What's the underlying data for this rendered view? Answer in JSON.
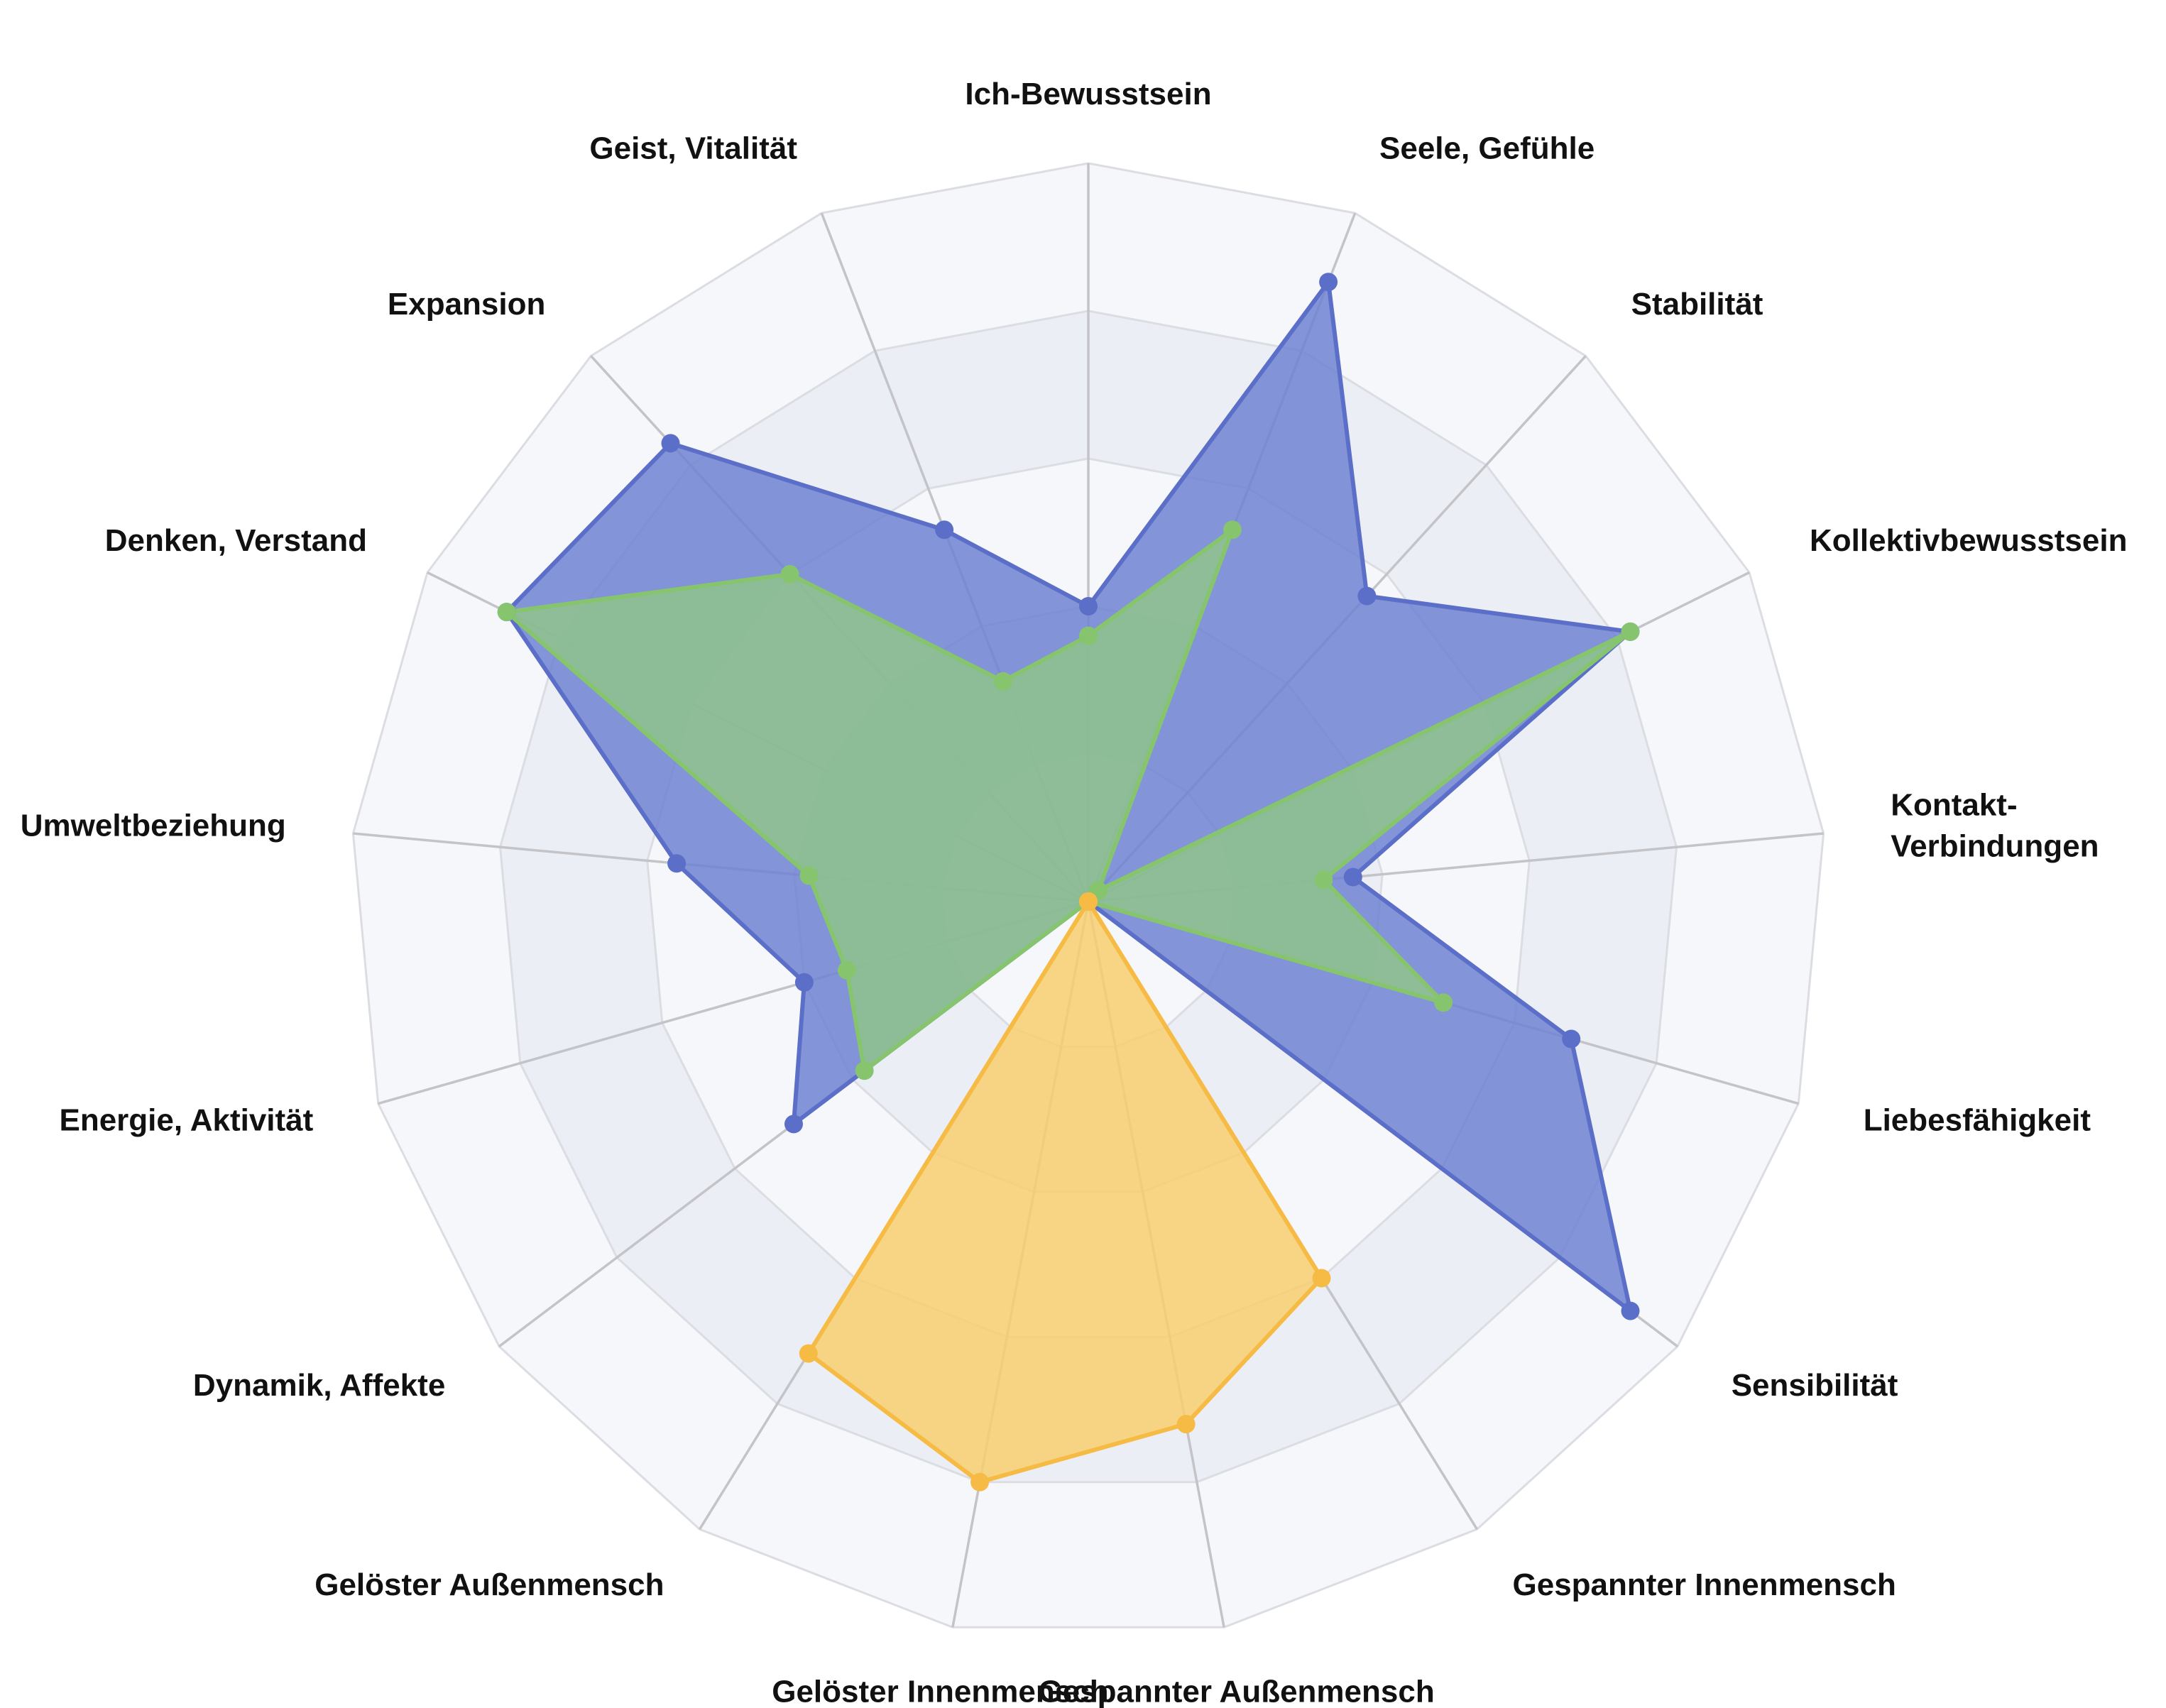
{
  "chart_data": {
    "type": "radar",
    "axes": [
      "Ich-Bewusstsein",
      "Seele, Gefühle",
      "Stabilität",
      "Kollektivbewusstsein",
      "Kontakt-\nVerbindungen",
      "Liebesfähigkeit",
      "Sensibilität",
      "Gespannter Innenmensch",
      "Gespannter Außenmensch",
      "Gelöster Innenmensch",
      "Gelöster Außenmensch",
      "Dynamik, Affekte",
      "Energie, Aktivität",
      "Umweltbeziehung",
      "Denken, Verstand",
      "Expansion",
      "Geist, Vitalität"
    ],
    "rlim": [
      0,
      5
    ],
    "grid_levels": 5,
    "grid": true,
    "legend": false,
    "series": [
      {
        "color": "#5b6fc8",
        "fill": "#7083d2",
        "values": [
          2.0,
          4.5,
          2.8,
          4.1,
          1.8,
          3.4,
          4.6,
          0.0,
          0.0,
          0.0,
          0.0,
          2.5,
          2.0,
          2.8,
          4.4,
          4.2,
          2.7
        ]
      },
      {
        "color": "#86c46e",
        "fill": "#8fc48b",
        "values": [
          1.8,
          2.7,
          0.1,
          4.1,
          1.6,
          2.5,
          0.0,
          0.0,
          0.0,
          0.0,
          0.0,
          1.9,
          1.7,
          1.9,
          4.4,
          3.0,
          1.6
        ]
      },
      {
        "color": "#f5bb45",
        "fill": "#f8cf6e",
        "values": [
          0.0,
          0.0,
          0.0,
          0.0,
          0.0,
          0.0,
          0.0,
          3.0,
          3.6,
          4.0,
          3.6,
          0.0,
          0.0,
          0.0,
          0.0,
          0.0,
          0.0
        ]
      }
    ]
  }
}
